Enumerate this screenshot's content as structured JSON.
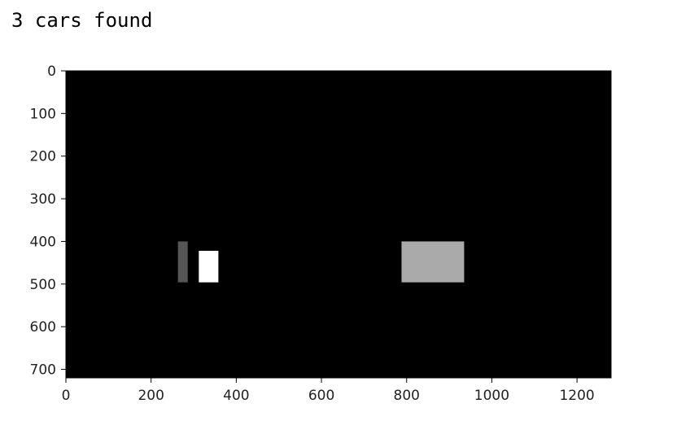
{
  "output": {
    "text": "3 cars found"
  },
  "chart_data": {
    "type": "heatmap",
    "description_kind": "image",
    "x_range": [
      0,
      1280
    ],
    "y_range": [
      720,
      0
    ],
    "xticks": [
      0,
      200,
      400,
      600,
      800,
      1000,
      1200
    ],
    "yticks": [
      0,
      100,
      200,
      300,
      400,
      500,
      600,
      700
    ],
    "xtick_labels": [
      "0",
      "200",
      "400",
      "600",
      "800",
      "1000",
      "1200"
    ],
    "ytick_labels": [
      "0",
      "100",
      "200",
      "300",
      "400",
      "500",
      "600",
      "700"
    ],
    "background_color": "#000000",
    "grid": false,
    "regions": [
      {
        "x0": 263,
        "x1": 286,
        "y0": 400,
        "y1": 496,
        "color": "#555555"
      },
      {
        "x0": 312,
        "x1": 358,
        "y0": 422,
        "y1": 496,
        "color": "#ffffff"
      },
      {
        "x0": 788,
        "x1": 935,
        "y0": 400,
        "y1": 496,
        "color": "#aaaaaa"
      }
    ]
  }
}
